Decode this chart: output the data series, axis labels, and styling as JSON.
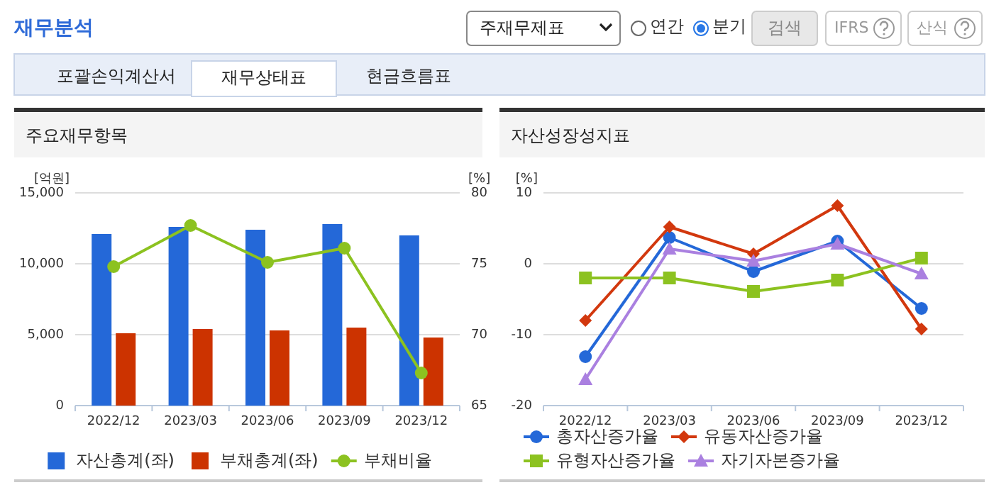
{
  "chart_data": [
    {
      "type": "bar",
      "title": "주요재무항목",
      "ylabel": "[억원]",
      "y2label": "[%]",
      "annotations": [
        "재무분석",
        "주재무제표",
        "연간",
        "분기",
        "검색",
        "IFRS",
        "산식",
        "포괄손익계산서",
        "재무상태표",
        "현금흐름표"
      ],
      "categories": [
        "2022/12",
        "2023/03",
        "2023/06",
        "2023/09",
        "2023/12"
      ],
      "series": [
        {
          "name": "자산총계(좌)",
          "type": "bar",
          "color": "#2468d8",
          "values": [
            12100,
            12600,
            12400,
            12800,
            12000
          ]
        },
        {
          "name": "부채총계(좌)",
          "type": "bar",
          "color": "#cc3300",
          "values": [
            5100,
            5400,
            5300,
            5500,
            4800
          ]
        },
        {
          "name": "부채비율",
          "type": "line",
          "axis": "y2",
          "color": "#8cc220",
          "marker": "circle",
          "values": [
            74.8,
            77.7,
            75.1,
            76.1,
            67.3
          ]
        }
      ],
      "ylim": [
        0,
        15000
      ],
      "yticks": [
        0,
        {
          "value": 5000,
          "label": "5,000"
        },
        {
          "value": 10000,
          "label": "10,000"
        },
        {
          "value": 15000,
          "label": "15,000"
        }
      ],
      "y2lim": [
        65,
        80
      ],
      "y2ticks": [
        65,
        70,
        75,
        80
      ],
      "grid": "y",
      "legend": "bottom"
    },
    {
      "type": "line",
      "title": "자산성장성지표",
      "ylabel": "[%]",
      "categories": [
        "2022/12",
        "2023/03",
        "2023/06",
        "2023/09",
        "2023/12"
      ],
      "series": [
        {
          "name": "총자산증가율",
          "color": "#2468d8",
          "marker": "circle",
          "values": [
            -13.1,
            3.7,
            -1.1,
            3.2,
            -6.3
          ]
        },
        {
          "name": "유동자산증가율",
          "color": "#d2380e",
          "marker": "diamond",
          "values": [
            -8.0,
            5.2,
            1.4,
            8.2,
            -9.2
          ]
        },
        {
          "name": "유형자산증가율",
          "color": "#8cc220",
          "marker": "square",
          "values": [
            -2.0,
            -2.0,
            -3.9,
            -2.3,
            0.8
          ]
        },
        {
          "name": "자기자본증가율",
          "color": "#aa80e0",
          "marker": "triangle",
          "values": [
            -16.3,
            2.1,
            0.4,
            2.8,
            -1.4
          ]
        }
      ],
      "ylim": [
        -20,
        10
      ],
      "yticks": [
        -20,
        -10,
        0,
        10
      ],
      "grid": "y",
      "legend": "bottom"
    }
  ]
}
